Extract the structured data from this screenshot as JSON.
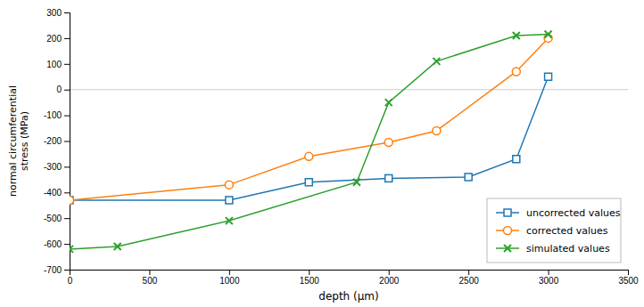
{
  "chart_data": {
    "type": "line",
    "x_label": "depth (μm)",
    "y_label": "normal circumferential\nstress (MPa)",
    "series": [
      {
        "name": "uncorrected values",
        "marker": "square",
        "x": [
          0,
          1000,
          1500,
          2000,
          2500,
          2800,
          3000
        ],
        "values": [
          -430,
          -430,
          -360,
          -345,
          -340,
          -270,
          50
        ]
      },
      {
        "name": "corrected values",
        "marker": "circle",
        "x": [
          0,
          1000,
          1500,
          2000,
          2300,
          2800,
          3000
        ],
        "values": [
          -430,
          -370,
          -260,
          -205,
          -160,
          70,
          200
        ]
      },
      {
        "name": "simulated values",
        "marker": "x",
        "x": [
          0,
          300,
          1000,
          1800,
          2000,
          2300,
          2800,
          3000
        ],
        "values": [
          -620,
          -610,
          -510,
          -360,
          -50,
          110,
          210,
          215
        ]
      }
    ],
    "xlim": [
      0,
      3500
    ],
    "ylim": [
      -700,
      300
    ],
    "xticks": [
      0,
      500,
      1000,
      1500,
      2000,
      2500,
      3000,
      3500
    ],
    "yticks": [
      -700,
      -600,
      -500,
      -400,
      -300,
      -200,
      -100,
      0,
      100,
      200,
      300
    ],
    "grid": false,
    "legend": "lower right"
  }
}
